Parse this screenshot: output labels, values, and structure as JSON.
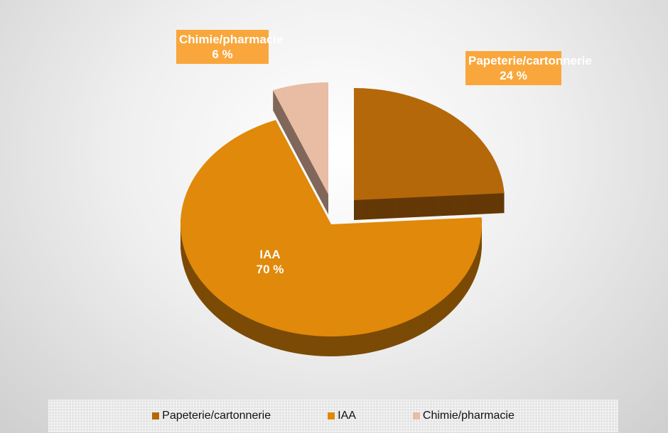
{
  "chart_data": {
    "type": "pie",
    "categories": [
      "Papeterie/cartonnerie",
      "IAA",
      "Chimie/pharmacie"
    ],
    "values": [
      24,
      70,
      6
    ],
    "value_labels": [
      "24 %",
      "70 %",
      "6 %"
    ],
    "colors": [
      "#b5680a",
      "#e0890a",
      "#e9bca4"
    ],
    "legend": "bottom"
  }
}
